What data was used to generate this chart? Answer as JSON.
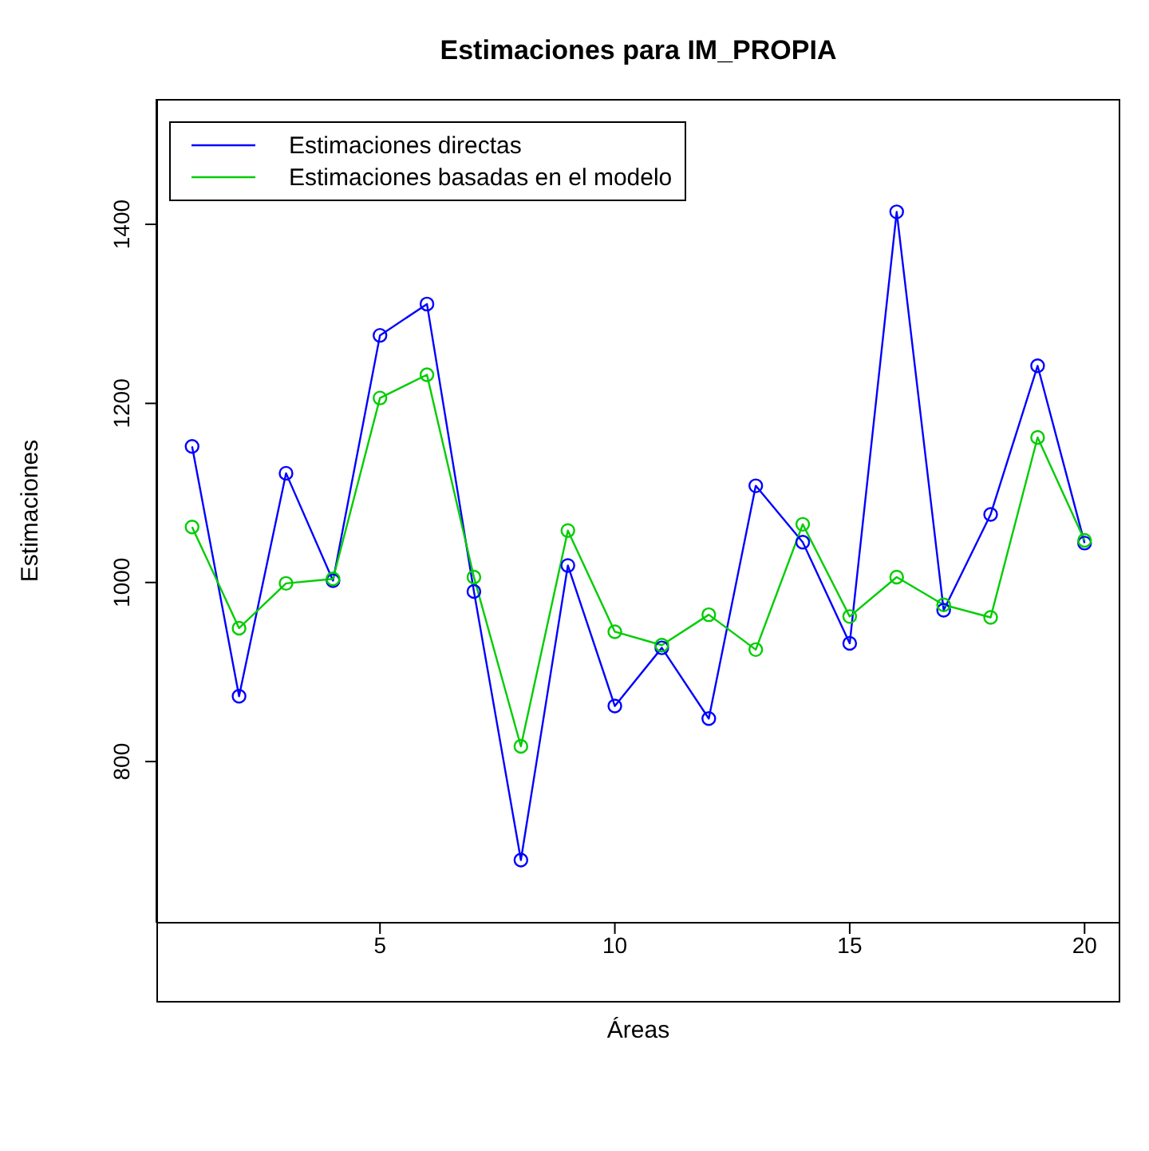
{
  "chart_data": {
    "type": "line",
    "title": "Estimaciones para IM_PROPIA",
    "xlabel": "Áreas",
    "ylabel": "Estimaciones",
    "x": [
      1,
      2,
      3,
      4,
      5,
      6,
      7,
      8,
      9,
      10,
      11,
      12,
      13,
      14,
      15,
      16,
      17,
      18,
      19,
      20
    ],
    "series": [
      {
        "name": "Estimaciones directas",
        "color": "#0000ff",
        "values": [
          1152,
          873,
          1122,
          1002,
          1276,
          1311,
          990,
          690,
          1019,
          862,
          927,
          848,
          1108,
          1045,
          932,
          1414,
          969,
          1076,
          1242,
          1044
        ]
      },
      {
        "name": "Estimaciones basadas en el modelo",
        "color": "#00cd00",
        "values": [
          1062,
          949,
          999,
          1004,
          1206,
          1232,
          1006,
          817,
          1058,
          945,
          930,
          964,
          925,
          1065,
          962,
          1006,
          975,
          961,
          1162,
          1047
        ]
      }
    ],
    "xlim": [
      0.24,
      20.76
    ],
    "ylim": [
      620,
      1540
    ],
    "xticks": [
      5,
      10,
      15,
      20
    ],
    "yticks": [
      800,
      1000,
      1200,
      1400
    ],
    "grid": false,
    "legend": "top left",
    "marker": "circle",
    "line_style": "solid"
  }
}
